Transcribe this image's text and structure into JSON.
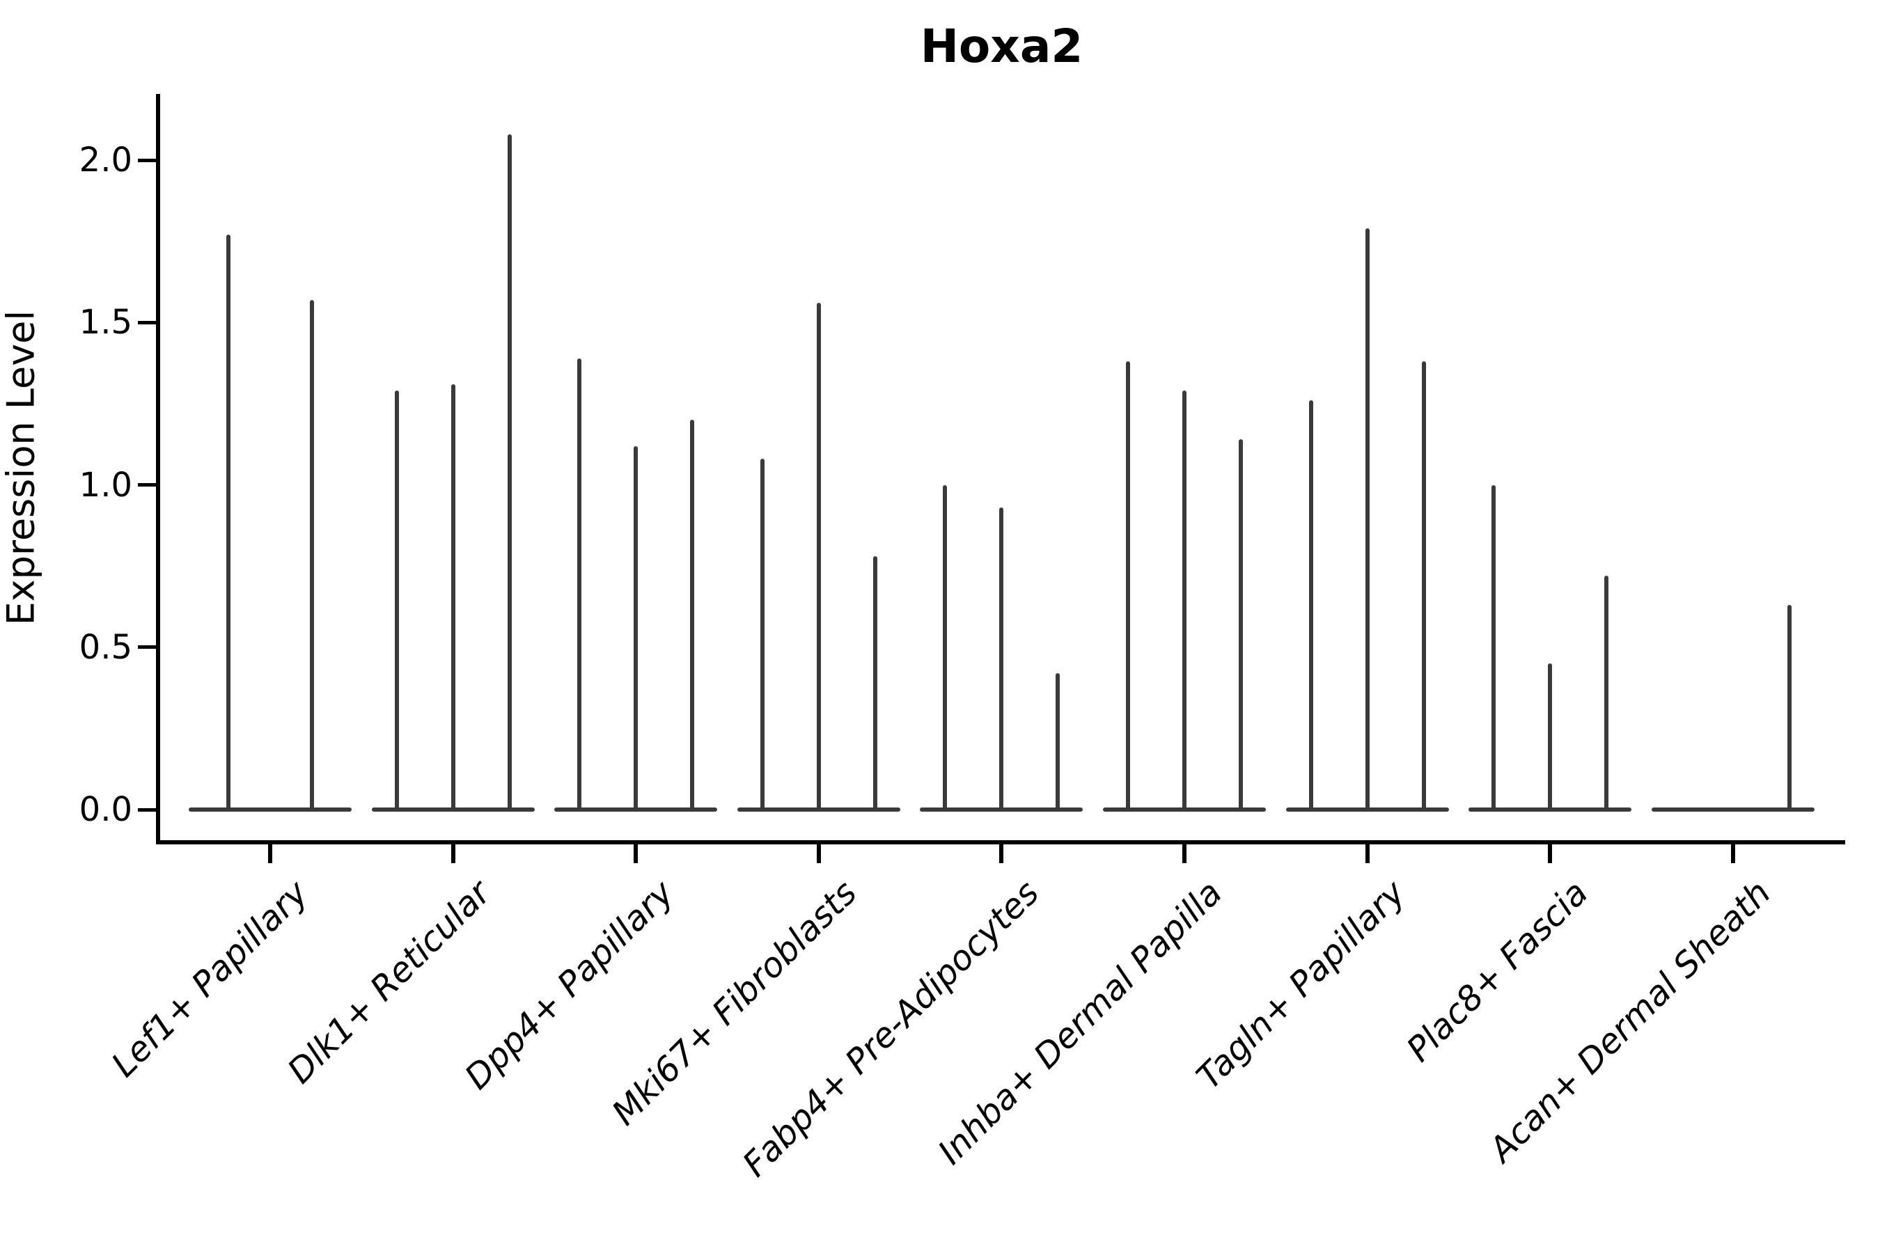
{
  "chart_data": {
    "type": "violin",
    "title": "Hoxa2",
    "ylabel": "Expression Level",
    "xlabel": "",
    "legend": null,
    "grid": false,
    "ylim": [
      -0.1,
      2.2
    ],
    "yticks": [
      {
        "label": "0.0",
        "value": 0.0
      },
      {
        "label": "0.5",
        "value": 0.5
      },
      {
        "label": "1.0",
        "value": 1.0
      },
      {
        "label": "1.5",
        "value": 1.5
      },
      {
        "label": "2.0",
        "value": 2.0
      }
    ],
    "violin_color": "#3a3a3a",
    "axis_color": "#000000",
    "background_color": "#ffffff",
    "description": "Violin plot of Hoxa2 expression per fibroblast cluster; each category shows multiple near-zero-width violins (max-expression spikes over a flat base at 0). Value 0 means a flat violin with no spike.",
    "categories": [
      {
        "label": "Lef1+ Papillary",
        "violins": [
          1.77,
          1.57
        ]
      },
      {
        "label": "Dlk1+ Reticular",
        "violins": [
          1.29,
          1.31,
          2.08
        ]
      },
      {
        "label": "Dpp4+ Papillary",
        "violins": [
          1.39,
          1.12,
          1.2
        ]
      },
      {
        "label": "Mki67+ Fibroblasts",
        "violins": [
          1.08,
          1.56,
          0.78
        ]
      },
      {
        "label": "Fabp4+ Pre-Adipocytes",
        "violins": [
          1.0,
          0.93,
          0.42
        ]
      },
      {
        "label": "Inhba+ Dermal Papilla",
        "violins": [
          1.38,
          1.29,
          1.14
        ]
      },
      {
        "label": "Tagln+ Papillary",
        "violins": [
          1.26,
          1.79,
          1.38
        ]
      },
      {
        "label": "Plac8+ Fascia",
        "violins": [
          1.0,
          0.45,
          0.72
        ]
      },
      {
        "label": "Acan+ Dermal Sheath",
        "violins": [
          0,
          0,
          0.63
        ]
      }
    ]
  }
}
